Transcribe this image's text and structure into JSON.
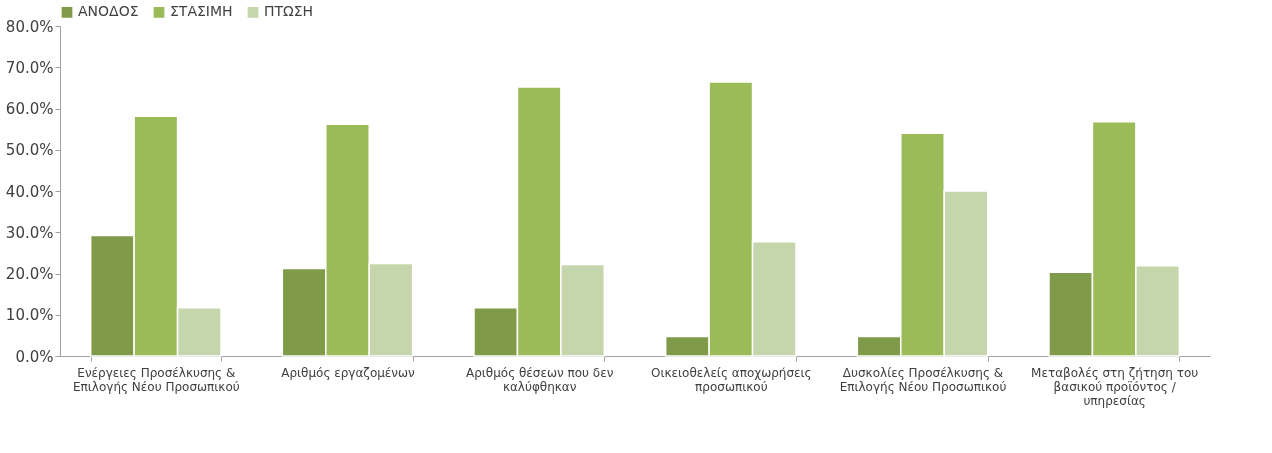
{
  "chart_data": {
    "type": "bar",
    "categories": [
      "Ενέργειες Προσέλκυσης &\nΕπιλογής Νέου Προσωπικού",
      "Αριθμός εργαζομένων",
      "Αριθμός θέσεων που δεν\nκαλύφθηκαν",
      "Οικειοθελείς αποχωρήσεις\nπροσωπικού",
      "Δυσκολίες Προσέλκυσης &\nΕπιλογής Νέου Προσωπικού",
      "Μεταβολές στη ζήτηση του\nβασικού προϊόντος /\nυπηρεσίας"
    ],
    "series": [
      {
        "name": "ΑΝΟΔΟΣ",
        "color": "#7f9a48",
        "values": [
          29.2,
          21.2,
          11.7,
          4.7,
          4.7,
          20.3
        ]
      },
      {
        "name": "ΣΤΑΣΙΜΗ",
        "color": "#9bbb59",
        "values": [
          58.1,
          56.2,
          65.2,
          66.4,
          54.0,
          56.8
        ]
      },
      {
        "name": "ΠΤΩΣΗ",
        "color": "#c6d6ac",
        "values": [
          11.7,
          22.4,
          22.2,
          27.7,
          40.0,
          21.9
        ]
      }
    ],
    "ylim": [
      0,
      80
    ],
    "yticks": [
      {
        "value": 0,
        "label": "0.0%"
      },
      {
        "value": 10,
        "label": "10.0%"
      },
      {
        "value": 20,
        "label": "20.0%"
      },
      {
        "value": 30,
        "label": "30.0%"
      },
      {
        "value": 40,
        "label": "40.0%"
      },
      {
        "value": 50,
        "label": "50.0%"
      },
      {
        "value": 60,
        "label": "60.0%"
      },
      {
        "value": 70,
        "label": "70.0%"
      },
      {
        "value": 80,
        "label": "80.0%"
      }
    ],
    "grid": false,
    "legend": "top"
  }
}
